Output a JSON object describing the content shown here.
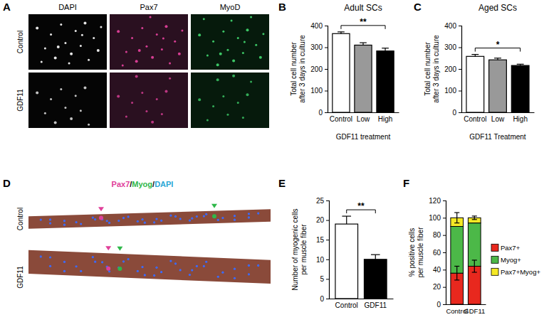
{
  "chart_data": [
    {
      "type": "bar",
      "panel": "B",
      "title": "Adult SCs",
      "y_label": [
        "Total cell number",
        "after 3 days in culture"
      ],
      "x_label": "GDF11 treatment",
      "categories": [
        "Control",
        "Low",
        "High"
      ],
      "values": [
        363,
        310,
        283
      ],
      "errors": [
        8,
        11,
        13
      ],
      "colors": [
        "#ffffff",
        "#999999",
        "#000000"
      ],
      "ylim": [
        0,
        400
      ],
      "yticks": [
        0,
        100,
        200,
        300,
        400
      ],
      "significance": [
        {
          "label": "**",
          "between": [
            "Control",
            "High"
          ]
        }
      ]
    },
    {
      "type": "bar",
      "panel": "C",
      "title": "Aged SCs",
      "y_label": [
        "Total cell number",
        "after 3 days in culture"
      ],
      "x_label": "GDF11 Treatment",
      "categories": [
        "Control",
        "Low",
        "High"
      ],
      "values": [
        258,
        242,
        216
      ],
      "errors": [
        9,
        8,
        6
      ],
      "colors": [
        "#ffffff",
        "#999999",
        "#000000"
      ],
      "ylim": [
        0,
        400
      ],
      "yticks": [
        0,
        100,
        200,
        300,
        400
      ],
      "significance": [
        {
          "label": "*",
          "between": [
            "Control",
            "High"
          ]
        }
      ]
    },
    {
      "type": "bar",
      "panel": "E",
      "y_label": [
        "Number of myogenic cells",
        "per muscle fiber"
      ],
      "categories": [
        "Control",
        "GDF11"
      ],
      "values": [
        19,
        10
      ],
      "errors": [
        2,
        1.2
      ],
      "colors": [
        "#ffffff",
        "#000000"
      ],
      "ylim": [
        0,
        25
      ],
      "yticks": [
        0,
        5,
        10,
        15,
        20,
        25
      ],
      "significance": [
        {
          "label": "**",
          "between": [
            "Control",
            "GDF11"
          ]
        }
      ]
    },
    {
      "type": "bar",
      "panel": "F",
      "stacked": true,
      "legend": "right",
      "y_label": [
        "% positive cells",
        "per muscle fiber"
      ],
      "categories": [
        "Control",
        "GDF11"
      ],
      "series": [
        {
          "name": "Pax7+",
          "color": "#e8281e",
          "values": [
            36,
            44
          ],
          "errors": [
            8,
            7
          ]
        },
        {
          "name": "Myog+",
          "color": "#4cb848",
          "values": [
            54,
            50
          ]
        },
        {
          "name": "Pax7+Myog+",
          "color": "#f5e925",
          "values": [
            10,
            6
          ],
          "errors": [
            6,
            2
          ]
        }
      ],
      "ylim": [
        0,
        120
      ],
      "yticks": [
        0,
        20,
        40,
        60,
        80,
        100,
        120
      ]
    }
  ],
  "images": {
    "A": {
      "panel": "A",
      "columns": [
        "DAPI",
        "Pax7",
        "MyoD"
      ],
      "column_colors": [
        "#f2f2f2",
        "#e0409a",
        "#3fd06a"
      ],
      "rows": [
        "Control",
        "GDF11"
      ]
    },
    "D": {
      "panel": "D",
      "separator": "/",
      "channels": [
        {
          "name": "Pax7",
          "color": "#e0409a"
        },
        {
          "name": "Myog",
          "color": "#2fb84a"
        },
        {
          "name": "DAPI",
          "color": "#2aa7d6"
        }
      ],
      "rows": [
        "Control",
        "GDF11"
      ]
    }
  }
}
